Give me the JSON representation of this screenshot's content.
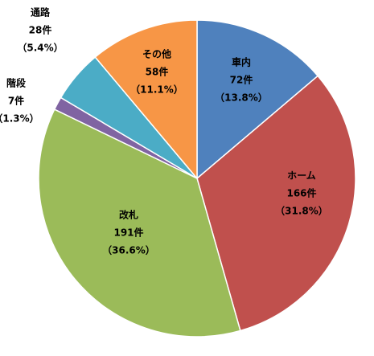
{
  "chart_data": {
    "type": "pie",
    "categories": [
      "車内",
      "ホーム",
      "改札",
      "階段",
      "通路",
      "その他"
    ],
    "values": [
      72,
      166,
      191,
      7,
      28,
      58
    ],
    "value_labels": [
      "72件",
      "166件",
      "191件",
      "7件",
      "28件",
      "58件"
    ],
    "percents": [
      13.8,
      31.8,
      36.6,
      1.3,
      5.4,
      11.1
    ],
    "percent_labels": [
      "（13.8%）",
      "（31.8%）",
      "（36.6%）",
      "（1.3%）",
      "（5.4%）",
      "（11.1%）"
    ],
    "colors": [
      "#4f81bd",
      "#c0504d",
      "#9bbb59",
      "#8064a2",
      "#4bacc6",
      "#f79646"
    ]
  }
}
